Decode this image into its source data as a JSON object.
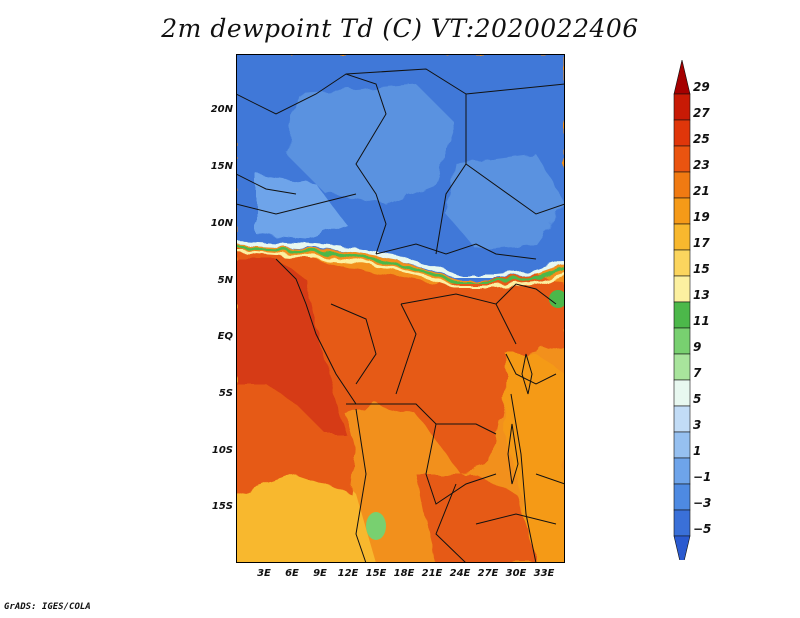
{
  "title": "2m dewpoint Td (C) VT:2020022406",
  "credit": "GrADS: IGES/COLA",
  "axes": {
    "lat_ticks": [
      "20N",
      "15N",
      "10N",
      "5N",
      "EQ",
      "5S",
      "10S",
      "15S"
    ],
    "lon_ticks": [
      "3E",
      "6E",
      "9E",
      "12E",
      "15E",
      "18E",
      "21E",
      "24E",
      "27E",
      "30E",
      "33E"
    ]
  },
  "colorbar": {
    "levels": [
      "29",
      "27",
      "25",
      "23",
      "21",
      "19",
      "17",
      "15",
      "13",
      "11",
      "9",
      "7",
      "5",
      "3",
      "1",
      "−1",
      "−3",
      "−5"
    ],
    "colors": [
      "#a50000",
      "#c81a05",
      "#e0360a",
      "#ea5410",
      "#f07a12",
      "#f59a18",
      "#f8b82e",
      "#fbd55e",
      "#fcf0a0",
      "#4cb84a",
      "#78d070",
      "#a8e49c",
      "#e8f8f0",
      "#c2dcf6",
      "#96c0f0",
      "#6ea4ea",
      "#4e8ae2",
      "#3a70d8",
      "#2a5ad0"
    ]
  },
  "legend_colors": {
    "ocean_hot": "#d63a12",
    "tropical": "#e65a14",
    "south": "#f2901c",
    "dry_north": "#3f78d8",
    "sahara": "#5a92e0",
    "border": "#111111"
  }
}
